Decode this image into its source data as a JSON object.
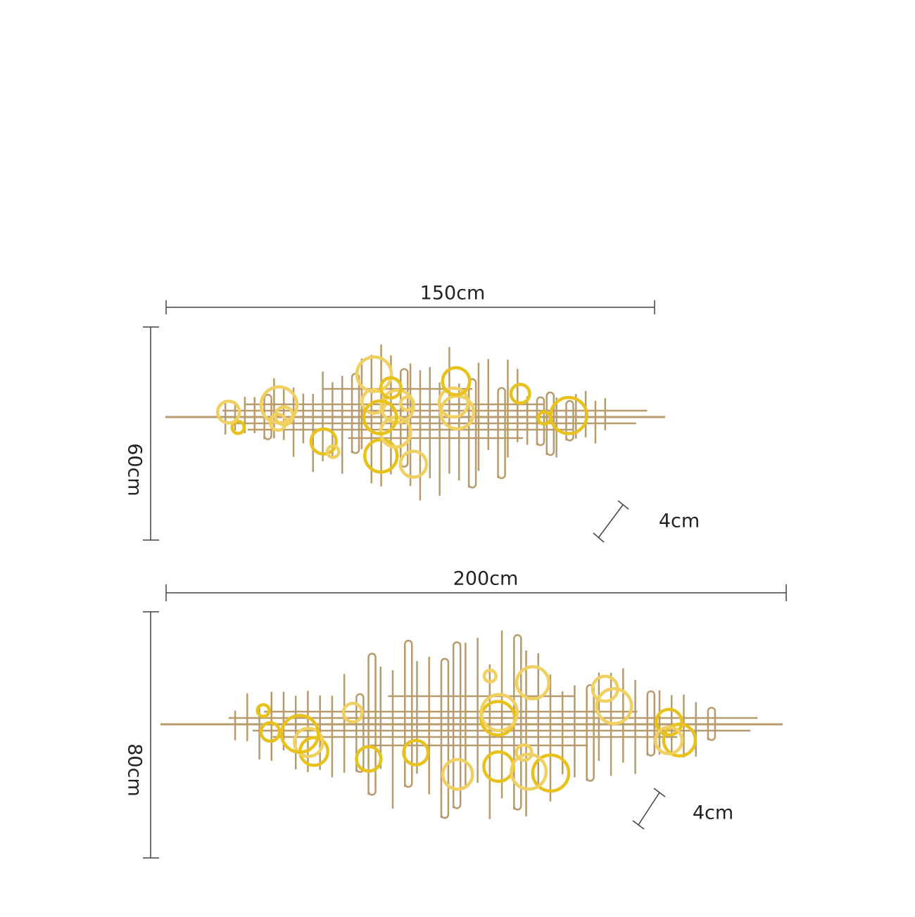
{
  "products": [
    {
      "width": "150cm",
      "height": "60cm",
      "depth": "4cm"
    },
    {
      "width": "200cm",
      "height": "80cm",
      "depth": "4cm"
    }
  ]
}
